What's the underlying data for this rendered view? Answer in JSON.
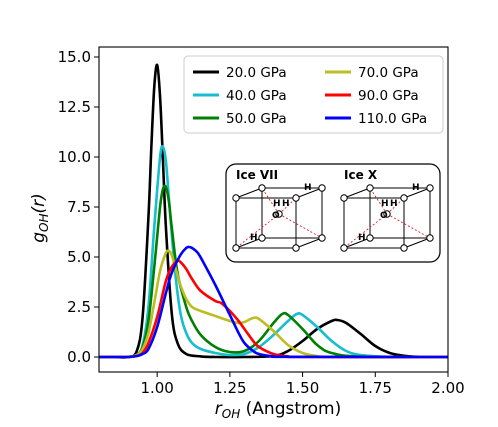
{
  "chart_data": {
    "type": "line",
    "xlabel": {
      "main": "r",
      "sub": "OH",
      "unit": "(Angstrom)"
    },
    "ylabel": {
      "main": "g",
      "sub": "OH",
      "arg": "(r)"
    },
    "xlim": [
      0.8,
      2.0
    ],
    "ylim": [
      -0.75,
      15.5
    ],
    "xticks": [
      1.0,
      1.25,
      1.5,
      1.75,
      2.0
    ],
    "xtick_labels": [
      "1.00",
      "1.25",
      "1.50",
      "1.75",
      "2.00"
    ],
    "yticks": [
      0.0,
      2.5,
      5.0,
      7.5,
      10.0,
      12.5,
      15.0
    ],
    "ytick_labels": [
      "0.0",
      "2.5",
      "5.0",
      "7.5",
      "10.0",
      "12.5",
      "15.0"
    ],
    "grid": false,
    "legend_position": "top-right",
    "series": [
      {
        "name": "20.0 GPa",
        "color": "#000000",
        "x": [
          0.8,
          0.85,
          0.9,
          0.93,
          0.95,
          0.97,
          0.98,
          0.99,
          1.0,
          1.01,
          1.02,
          1.03,
          1.05,
          1.07,
          1.1,
          1.15,
          1.2,
          1.3,
          1.4,
          1.45,
          1.5,
          1.55,
          1.6,
          1.62,
          1.65,
          1.7,
          1.75,
          1.8,
          1.85,
          1.9,
          2.0
        ],
        "y": [
          0.0,
          0.0,
          0.0,
          0.3,
          2.0,
          7.0,
          10.5,
          13.5,
          14.6,
          13.0,
          9.8,
          6.5,
          2.2,
          0.7,
          0.15,
          0.03,
          0.0,
          0.0,
          0.05,
          0.3,
          0.8,
          1.4,
          1.8,
          1.85,
          1.7,
          1.15,
          0.55,
          0.2,
          0.06,
          0.01,
          0.0
        ]
      },
      {
        "name": "40.0 GPa",
        "color": "#17becf",
        "x": [
          0.8,
          0.85,
          0.9,
          0.93,
          0.95,
          0.97,
          0.99,
          1.01,
          1.02,
          1.03,
          1.04,
          1.06,
          1.08,
          1.1,
          1.12,
          1.15,
          1.2,
          1.25,
          1.3,
          1.35,
          1.4,
          1.45,
          1.48,
          1.5,
          1.55,
          1.6,
          1.65,
          1.7,
          1.8,
          2.0
        ],
        "y": [
          0.0,
          0.0,
          0.0,
          0.1,
          0.6,
          2.5,
          6.5,
          10.0,
          10.5,
          9.8,
          8.0,
          4.5,
          2.2,
          1.2,
          0.7,
          0.4,
          0.2,
          0.1,
          0.15,
          0.5,
          1.1,
          1.8,
          2.15,
          2.1,
          1.5,
          0.8,
          0.3,
          0.1,
          0.01,
          0.0
        ]
      },
      {
        "name": "50.0 GPa",
        "color": "#008000",
        "x": [
          0.8,
          0.85,
          0.9,
          0.93,
          0.95,
          0.97,
          0.99,
          1.01,
          1.02,
          1.03,
          1.04,
          1.05,
          1.07,
          1.1,
          1.12,
          1.15,
          1.2,
          1.25,
          1.3,
          1.35,
          1.4,
          1.43,
          1.45,
          1.5,
          1.55,
          1.6,
          1.7,
          2.0
        ],
        "y": [
          0.0,
          0.0,
          0.0,
          0.1,
          0.5,
          1.8,
          4.5,
          7.5,
          8.4,
          8.5,
          7.8,
          6.5,
          4.2,
          2.5,
          1.8,
          1.1,
          0.5,
          0.25,
          0.3,
          0.8,
          1.7,
          2.15,
          2.1,
          1.4,
          0.6,
          0.2,
          0.02,
          0.0
        ]
      },
      {
        "name": "70.0 GPa",
        "color": "#bcbd22",
        "x": [
          0.8,
          0.85,
          0.9,
          0.93,
          0.95,
          0.97,
          0.99,
          1.01,
          1.03,
          1.04,
          1.05,
          1.06,
          1.08,
          1.1,
          1.12,
          1.15,
          1.2,
          1.25,
          1.28,
          1.3,
          1.33,
          1.35,
          1.4,
          1.45,
          1.5,
          1.55,
          1.6,
          2.0
        ],
        "y": [
          0.0,
          0.0,
          0.0,
          0.1,
          0.4,
          1.2,
          2.7,
          4.3,
          5.2,
          5.3,
          5.1,
          4.6,
          3.6,
          2.9,
          2.5,
          2.3,
          2.05,
          1.8,
          1.7,
          1.75,
          1.95,
          1.9,
          1.3,
          0.6,
          0.2,
          0.05,
          0.01,
          0.0
        ]
      },
      {
        "name": "90.0 GPa",
        "color": "#ff0000",
        "x": [
          0.8,
          0.85,
          0.9,
          0.93,
          0.95,
          0.97,
          1.0,
          1.03,
          1.05,
          1.07,
          1.08,
          1.1,
          1.12,
          1.15,
          1.2,
          1.22,
          1.25,
          1.28,
          1.3,
          1.33,
          1.35,
          1.4,
          1.45,
          1.5,
          2.0
        ],
        "y": [
          0.0,
          0.0,
          0.0,
          0.05,
          0.2,
          0.7,
          2.0,
          3.8,
          4.5,
          4.8,
          4.75,
          4.4,
          3.9,
          3.3,
          2.8,
          2.7,
          2.3,
          1.8,
          1.4,
          0.8,
          0.5,
          0.15,
          0.03,
          0.0,
          0.0
        ]
      },
      {
        "name": "110.0 GPa",
        "color": "#0000ff",
        "x": [
          0.8,
          0.85,
          0.9,
          0.93,
          0.95,
          0.97,
          1.0,
          1.03,
          1.05,
          1.08,
          1.1,
          1.11,
          1.12,
          1.14,
          1.16,
          1.2,
          1.24,
          1.26,
          1.28,
          1.3,
          1.33,
          1.35,
          1.4,
          1.45,
          2.0
        ],
        "y": [
          0.0,
          0.0,
          0.0,
          0.05,
          0.15,
          0.4,
          1.5,
          3.2,
          4.2,
          5.1,
          5.45,
          5.5,
          5.45,
          5.2,
          4.7,
          3.6,
          2.4,
          1.8,
          1.2,
          0.7,
          0.3,
          0.15,
          0.03,
          0.01,
          0.0
        ]
      }
    ],
    "inset": {
      "panels": [
        {
          "title": "Ice VII",
          "labels": [
            "H",
            "H",
            "O",
            "H",
            "H"
          ]
        },
        {
          "title": "Ice X",
          "labels": [
            "H",
            "H",
            "O",
            "H",
            "H"
          ]
        }
      ]
    }
  }
}
